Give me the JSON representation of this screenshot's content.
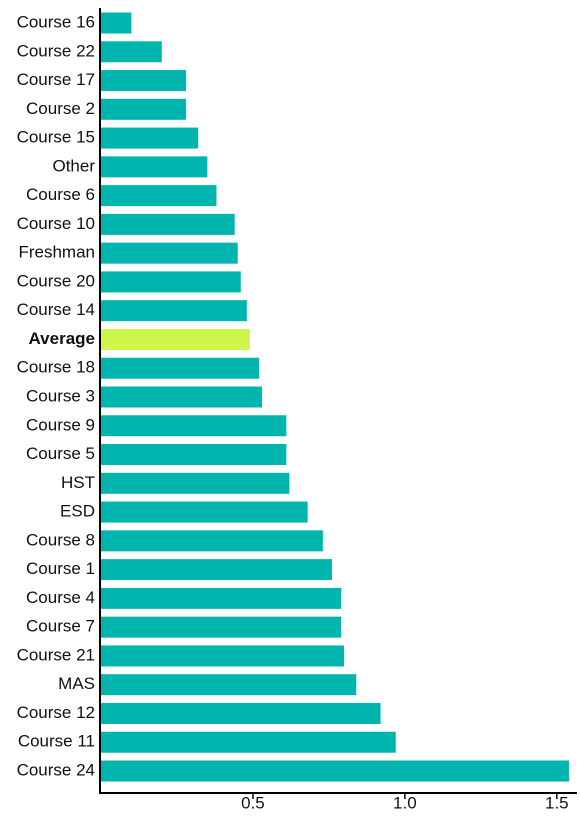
{
  "chart_data": {
    "type": "barh",
    "categories": [
      "Course 16",
      "Course 22",
      "Course 17",
      "Course 2",
      "Course 15",
      "Other",
      "Course 6",
      "Course 10",
      "Freshman",
      "Course 20",
      "Course 14",
      "Average",
      "Course 18",
      "Course 3",
      "Course 9",
      "Course 5",
      "HST",
      "ESD",
      "Course 8",
      "Course 1",
      "Course 4",
      "Course 7",
      "Course 21",
      "MAS",
      "Course 12",
      "Course 11",
      "Course 24"
    ],
    "values": [
      0.1,
      0.2,
      0.28,
      0.28,
      0.32,
      0.35,
      0.38,
      0.44,
      0.45,
      0.46,
      0.48,
      0.49,
      0.52,
      0.53,
      0.61,
      0.61,
      0.62,
      0.68,
      0.73,
      0.76,
      0.79,
      0.79,
      0.8,
      0.84,
      0.92,
      0.97,
      1.54
    ],
    "colors": [
      "#00b5ad",
      "#00b5ad",
      "#00b5ad",
      "#00b5ad",
      "#00b5ad",
      "#00b5ad",
      "#00b5ad",
      "#00b5ad",
      "#00b5ad",
      "#00b5ad",
      "#00b5ad",
      "#ccf74a",
      "#00b5ad",
      "#00b5ad",
      "#00b5ad",
      "#00b5ad",
      "#00b5ad",
      "#00b5ad",
      "#00b5ad",
      "#00b5ad",
      "#00b5ad",
      "#00b5ad",
      "#00b5ad",
      "#00b5ad",
      "#00b5ad",
      "#00b5ad",
      "#00b5ad"
    ],
    "xlim": [
      0,
      1.55
    ],
    "xticks": [
      0.5,
      {
        "value": 1,
        "label": "1.0"
      },
      1.5
    ],
    "grid": false
  }
}
